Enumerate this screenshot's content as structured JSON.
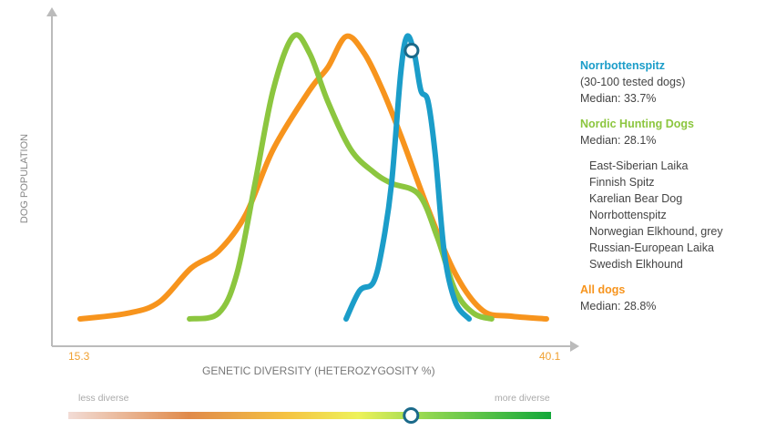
{
  "chart_data": {
    "type": "line",
    "xlabel": "GENETIC DIVERSITY (HETEROZYGOSITY %)",
    "ylabel": "DOG POPULATION",
    "xlim": [
      15.3,
      40.1
    ],
    "x_tick_labels": [
      "15.3",
      "40.1"
    ],
    "ylim": [
      0,
      1
    ],
    "grid": false,
    "legend_placement": "right",
    "series": [
      {
        "name": "All dogs",
        "color": "#f7941d",
        "x": [
          15.44,
          17.92,
          19.59,
          21.26,
          22.69,
          24.12,
          25.55,
          27.46,
          28.41,
          29.37,
          30.32,
          31.28,
          32.23,
          33.66,
          35.09,
          36.52,
          37.95,
          39.86
        ],
        "y": [
          0,
          0.02,
          0.06,
          0.18,
          0.24,
          0.37,
          0.6,
          0.81,
          0.89,
          1,
          0.94,
          0.81,
          0.65,
          0.39,
          0.16,
          0.03,
          0.01,
          0
        ]
      },
      {
        "name": "Nordic Hunting Dogs",
        "color": "#8cc63f",
        "x": [
          21.17,
          22.69,
          23.65,
          24.6,
          25.55,
          26.6,
          27.46,
          28.41,
          29.61,
          30.8,
          31.75,
          33.18,
          34.14,
          35.09,
          36.04,
          36.99
        ],
        "y": [
          0,
          0.02,
          0.16,
          0.48,
          0.81,
          1,
          0.94,
          0.77,
          0.6,
          0.52,
          0.48,
          0.44,
          0.29,
          0.1,
          0.02,
          0
        ]
      },
      {
        "name": "Norrbottenspitz",
        "color": "#1b9dc9",
        "x": [
          29.37,
          30.08,
          30.8,
          31.28,
          31.75,
          32.23,
          32.56,
          32.94,
          33.28,
          33.66,
          34.04,
          34.52,
          35.09,
          35.81
        ],
        "y": [
          0,
          0.1,
          0.13,
          0.26,
          0.48,
          0.87,
          1,
          0.94,
          0.81,
          0.77,
          0.58,
          0.23,
          0.06,
          0
        ]
      }
    ],
    "marker": {
      "series": "Norrbottenspitz",
      "x": 32.8,
      "y": 0.95
    }
  },
  "legend": {
    "breed": {
      "title": "Norrbottenspitz",
      "sub": "(30-100 tested dogs)",
      "median": "Median: 33.7%"
    },
    "group": {
      "title": "Nordic Hunting Dogs",
      "median": "Median: 28.1%",
      "breeds": [
        "East-Siberian Laika",
        "Finnish Spitz",
        "Karelian Bear Dog",
        "Norrbottenspitz",
        "Norwegian Elkhound, grey",
        "Russian-European Laika",
        "Swedish Elkhound"
      ]
    },
    "all": {
      "title": "All dogs",
      "median": "Median: 28.8%"
    }
  },
  "scale": {
    "less": "less diverse",
    "more": "more diverse",
    "position": 0.71
  }
}
